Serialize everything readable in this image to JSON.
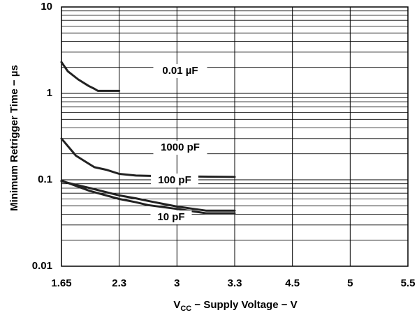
{
  "chart_data": {
    "type": "line",
    "xlabel": {
      "prefix": "V",
      "sub": "CC",
      "rest": " − Supply Voltage − V"
    },
    "ylabel": "Minimum Retrigger Time − µs",
    "yscale": "log",
    "ylim": [
      0.01,
      10
    ],
    "x_ticks": [
      "1.65",
      "2.3",
      "3",
      "3.3",
      "4.5",
      "5",
      "5.5"
    ],
    "y_ticks": [
      {
        "value": 10,
        "label": "10"
      },
      {
        "value": 1,
        "label": "1"
      },
      {
        "value": 0.1,
        "label": "0.1"
      },
      {
        "value": 0.01,
        "label": "0.01"
      }
    ],
    "grid": true,
    "series": [
      {
        "name": "0.01 µF",
        "points": [
          [
            0.0,
            2.3
          ],
          [
            0.11,
            1.8
          ],
          [
            0.29,
            1.45
          ],
          [
            0.47,
            1.22
          ],
          [
            0.57,
            1.13
          ],
          [
            0.63,
            1.07
          ],
          [
            0.79,
            1.07
          ],
          [
            1.0,
            1.07
          ]
        ]
      },
      {
        "name": "1000 pF",
        "points": [
          [
            0.0,
            0.3
          ],
          [
            0.25,
            0.19
          ],
          [
            0.57,
            0.14
          ],
          [
            0.79,
            0.13
          ],
          [
            1.0,
            0.117
          ],
          [
            1.29,
            0.112
          ],
          [
            1.54,
            0.111
          ],
          [
            1.86,
            0.11
          ],
          [
            2.0,
            0.109
          ],
          [
            2.4,
            0.109
          ],
          [
            3.0,
            0.108
          ]
        ]
      },
      {
        "name": "100 pF",
        "points": [
          [
            0.0,
            0.096
          ],
          [
            0.5,
            0.08
          ],
          [
            1.0,
            0.066
          ],
          [
            1.29,
            0.061
          ],
          [
            1.5,
            0.057
          ],
          [
            2.0,
            0.049
          ],
          [
            2.5,
            0.044
          ],
          [
            3.0,
            0.044
          ]
        ]
      },
      {
        "name": "10 pF",
        "points": [
          [
            0.0,
            0.098
          ],
          [
            0.5,
            0.074
          ],
          [
            1.0,
            0.06
          ],
          [
            1.29,
            0.055
          ],
          [
            1.5,
            0.051
          ],
          [
            2.0,
            0.046
          ],
          [
            2.5,
            0.041
          ],
          [
            3.0,
            0.041
          ]
        ]
      }
    ]
  }
}
